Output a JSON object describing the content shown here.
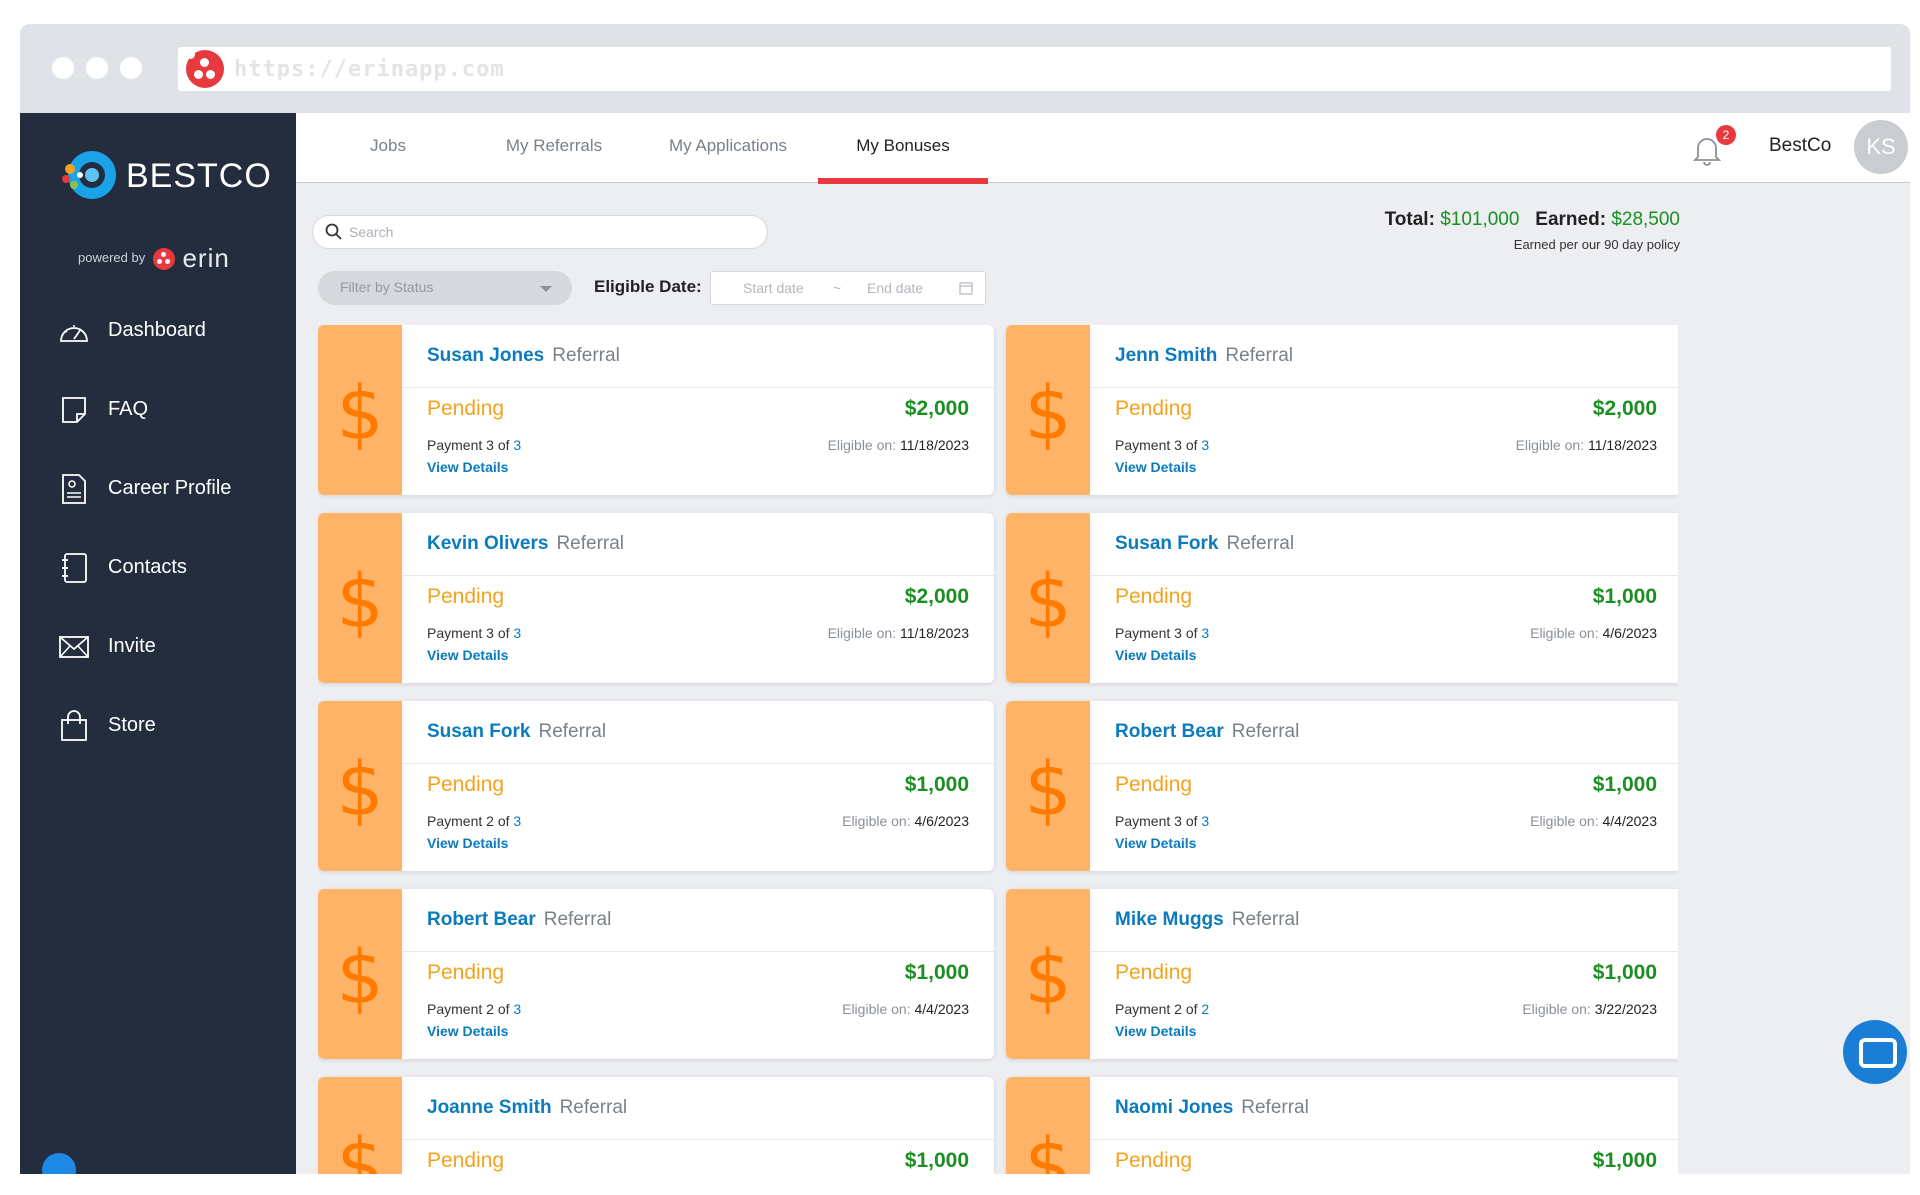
{
  "browser": {
    "url": "https://erinapp.com"
  },
  "sidebar": {
    "brand": "BESTCO",
    "powered_by": "powered by",
    "powered_brand": "erin",
    "items": [
      {
        "label": "Dashboard",
        "icon": "gauge-icon"
      },
      {
        "label": "FAQ",
        "icon": "note-icon"
      },
      {
        "label": "Career Profile",
        "icon": "profile-document-icon"
      },
      {
        "label": "Contacts",
        "icon": "address-book-icon"
      },
      {
        "label": "Invite",
        "icon": "envelope-icon"
      },
      {
        "label": "Store",
        "icon": "shopping-bag-icon"
      }
    ]
  },
  "header": {
    "tabs": [
      {
        "label": "Jobs"
      },
      {
        "label": "My Referrals"
      },
      {
        "label": "My Applications"
      },
      {
        "label": "My Bonuses"
      }
    ],
    "active_tab": "My Bonuses",
    "notification_count": "2",
    "company": "BestCo",
    "avatar_initials": "KS"
  },
  "toolbar": {
    "search_placeholder": "Search",
    "filter_placeholder": "Filter by Status",
    "eligible_label": "Eligible Date:",
    "start_placeholder": "Start date",
    "date_separator": "~",
    "end_placeholder": "End date"
  },
  "summary": {
    "total_label": "Total:",
    "total_value": "$101,000",
    "earned_label": "Earned:",
    "earned_value": "$28,500",
    "note": "Earned per our 90 day policy"
  },
  "colors": {
    "sidebar_bg": "#232d3e",
    "accent_red": "#e8393f",
    "link_blue": "#0b7bbd",
    "amount_green": "#1b8f22",
    "pending_orange": "#f5a21d",
    "strip_orange": "#ffb366"
  },
  "bonuses": [
    {
      "name": "Susan Jones",
      "type": "Referral",
      "status": "Pending",
      "amount": "$2,000",
      "payment_label": "Payment 3 of",
      "payment_total": "3",
      "eligible_label": "Eligible on:",
      "eligible_date": "11/18/2023",
      "details": "View Details"
    },
    {
      "name": "Jenn Smith",
      "type": "Referral",
      "status": "Pending",
      "amount": "$2,000",
      "payment_label": "Payment 3 of",
      "payment_total": "3",
      "eligible_label": "Eligible on:",
      "eligible_date": "11/18/2023",
      "details": "View Details"
    },
    {
      "name": "Kevin Olivers",
      "type": "Referral",
      "status": "Pending",
      "amount": "$2,000",
      "payment_label": "Payment 3 of",
      "payment_total": "3",
      "eligible_label": "Eligible on:",
      "eligible_date": "11/18/2023",
      "details": "View Details"
    },
    {
      "name": "Susan Fork",
      "type": "Referral",
      "status": "Pending",
      "amount": "$1,000",
      "payment_label": "Payment 3 of",
      "payment_total": "3",
      "eligible_label": "Eligible on:",
      "eligible_date": "4/6/2023",
      "details": "View Details"
    },
    {
      "name": "Susan Fork",
      "type": "Referral",
      "status": "Pending",
      "amount": "$1,000",
      "payment_label": "Payment 2 of",
      "payment_total": "3",
      "eligible_label": "Eligible on:",
      "eligible_date": "4/6/2023",
      "details": "View Details"
    },
    {
      "name": "Robert Bear",
      "type": "Referral",
      "status": "Pending",
      "amount": "$1,000",
      "payment_label": "Payment 3 of",
      "payment_total": "3",
      "eligible_label": "Eligible on:",
      "eligible_date": "4/4/2023",
      "details": "View Details"
    },
    {
      "name": "Robert Bear",
      "type": "Referral",
      "status": "Pending",
      "amount": "$1,000",
      "payment_label": "Payment 2 of",
      "payment_total": "3",
      "eligible_label": "Eligible on:",
      "eligible_date": "4/4/2023",
      "details": "View Details"
    },
    {
      "name": "Mike Muggs",
      "type": "Referral",
      "status": "Pending",
      "amount": "$1,000",
      "payment_label": "Payment 2 of",
      "payment_total": "2",
      "eligible_label": "Eligible on:",
      "eligible_date": "3/22/2023",
      "details": "View Details"
    },
    {
      "name": "Joanne Smith",
      "type": "Referral",
      "status": "Pending",
      "amount": "$1,000"
    },
    {
      "name": "Naomi Jones",
      "type": "Referral",
      "status": "Pending",
      "amount": "$1,000"
    }
  ]
}
